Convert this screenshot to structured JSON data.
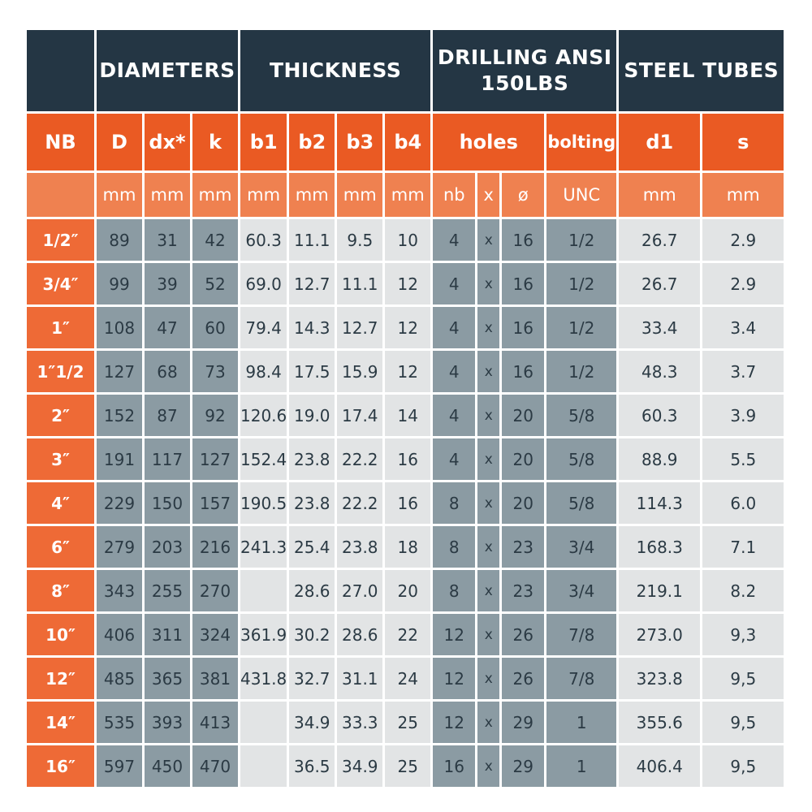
{
  "groups": {
    "nb": "",
    "diameters": "DIAMETERS",
    "thickness": "THICKNESS",
    "drilling_line1": "DRILLING ANSI",
    "drilling_line2": "150LBS",
    "steel_tubes": "STEEL TUBES"
  },
  "columns": [
    "NB",
    "D",
    "dx*",
    "k",
    "b1",
    "b2",
    "b3",
    "b4",
    "holes",
    "bolting",
    "d1",
    "s"
  ],
  "units": [
    "",
    "mm",
    "mm",
    "mm",
    "mm",
    "mm",
    "mm",
    "mm",
    "nb",
    "x",
    "ø",
    "UNC",
    "mm",
    "mm"
  ],
  "rows": [
    [
      "1/2″",
      "89",
      "31",
      "42",
      "60.3",
      "11.1",
      "9.5",
      "10",
      "4",
      "x",
      "16",
      "1/2",
      "26.7",
      "2.9"
    ],
    [
      "3/4″",
      "99",
      "39",
      "52",
      "69.0",
      "12.7",
      "11.1",
      "12",
      "4",
      "x",
      "16",
      "1/2",
      "26.7",
      "2.9"
    ],
    [
      "1″",
      "108",
      "47",
      "60",
      "79.4",
      "14.3",
      "12.7",
      "12",
      "4",
      "x",
      "16",
      "1/2",
      "33.4",
      "3.4"
    ],
    [
      "1″1/2",
      "127",
      "68",
      "73",
      "98.4",
      "17.5",
      "15.9",
      "12",
      "4",
      "x",
      "16",
      "1/2",
      "48.3",
      "3.7"
    ],
    [
      "2″",
      "152",
      "87",
      "92",
      "120.6",
      "19.0",
      "17.4",
      "14",
      "4",
      "x",
      "20",
      "5/8",
      "60.3",
      "3.9"
    ],
    [
      "3″",
      "191",
      "117",
      "127",
      "152.4",
      "23.8",
      "22.2",
      "16",
      "4",
      "x",
      "20",
      "5/8",
      "88.9",
      "5.5"
    ],
    [
      "4″",
      "229",
      "150",
      "157",
      "190.5",
      "23.8",
      "22.2",
      "16",
      "8",
      "x",
      "20",
      "5/8",
      "114.3",
      "6.0"
    ],
    [
      "6″",
      "279",
      "203",
      "216",
      "241.3",
      "25.4",
      "23.8",
      "18",
      "8",
      "x",
      "23",
      "3/4",
      "168.3",
      "7.1"
    ],
    [
      "8″",
      "343",
      "255",
      "270",
      "",
      "28.6",
      "27.0",
      "20",
      "8",
      "x",
      "23",
      "3/4",
      "219.1",
      "8.2"
    ],
    [
      "10″",
      "406",
      "311",
      "324",
      "361.9",
      "30.2",
      "28.6",
      "22",
      "12",
      "x",
      "26",
      "7/8",
      "273.0",
      "9,3"
    ],
    [
      "12″",
      "485",
      "365",
      "381",
      "431.8",
      "32.7",
      "31.1",
      "24",
      "12",
      "x",
      "26",
      "7/8",
      "323.8",
      "9,5"
    ],
    [
      "14″",
      "535",
      "393",
      "413",
      "",
      "34.9",
      "33.3",
      "25",
      "12",
      "x",
      "29",
      "1",
      "355.6",
      "9,5"
    ],
    [
      "16″",
      "597",
      "450",
      "470",
      "",
      "36.5",
      "34.9",
      "25",
      "16",
      "x",
      "29",
      "1",
      "406.4",
      "9,5"
    ]
  ]
}
